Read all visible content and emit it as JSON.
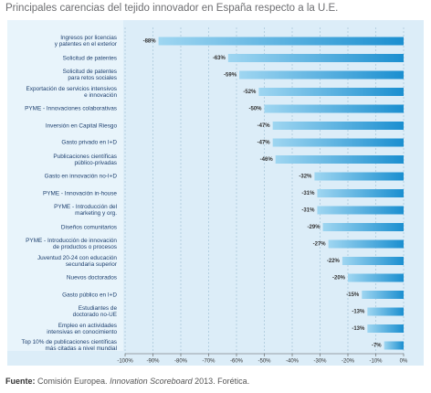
{
  "chart_data": {
    "type": "bar",
    "orientation": "horizontal",
    "title": "Principales carencias del tejido innovador en España respecto a la U.E.",
    "categories": [
      "Ingresos por licencias\ny patentes en el exterior",
      "Solicitud de patentes",
      "Solicitud de patentes\npara retos sociales",
      "Exportación de servicios intensivos\ne innovación",
      "PYME - Innovaciones colaborativas",
      "Inversión en Capital Riesgo",
      "Gasto privado en I+D",
      "Publicaciones científicas\npúblico-privadas",
      "Gasto en innovación no-I+D",
      "PYME - Innovación in-house",
      "PYME - Introducción del\nmarketing y org.",
      "Diseños comunitarios",
      "PYME - Introducción de innovación\nde productos o procesos",
      "Juventud 20-24 con educación\nsecundaria superior",
      "Nuevos doctorados",
      "Gasto público en I+D",
      "Estudiantes de\ndoctorado no-UE",
      "Empleo en actividades\nintensivas en conocimiento",
      "Top 10% de publicaciones científicas\nmás citadas a nivel mundial"
    ],
    "values": [
      -88,
      -63,
      -59,
      -52,
      -50,
      -47,
      -47,
      -46,
      -32,
      -31,
      -31,
      -29,
      -27,
      -22,
      -20,
      -15,
      -13,
      -13,
      -7
    ],
    "value_labels": [
      "-88%",
      "-63%",
      "-59%",
      "-52%",
      "-50%",
      "-47%",
      "-47%",
      "-46%",
      "-32%",
      "-31%",
      "-31%",
      "-29%",
      "-27%",
      "-22%",
      "-20%",
      "-15%",
      "-13%",
      "-13%",
      "-7%"
    ],
    "color": "#1b9bd7",
    "xlim": [
      -100,
      0
    ],
    "xticks": [
      {
        "value": -100,
        "label": "-100%"
      },
      {
        "value": -90,
        "label": "-90%"
      },
      {
        "value": -80,
        "label": "-80%"
      },
      {
        "value": -70,
        "label": "-70%"
      },
      {
        "value": -60,
        "label": "-60%"
      },
      {
        "value": -50,
        "label": "-50%"
      },
      {
        "value": -40,
        "label": "-40%"
      },
      {
        "value": -30,
        "label": "-30%"
      },
      {
        "value": -20,
        "label": "-20%"
      },
      {
        "value": -10,
        "label": "-10%"
      },
      {
        "value": 0,
        "label": "0%"
      }
    ],
    "grid": true,
    "footer": {
      "label": "Fuente:",
      "source": "Comisión Europea.",
      "publication": "Innovation Scoreboard",
      "rest": "2013. Forética."
    }
  }
}
